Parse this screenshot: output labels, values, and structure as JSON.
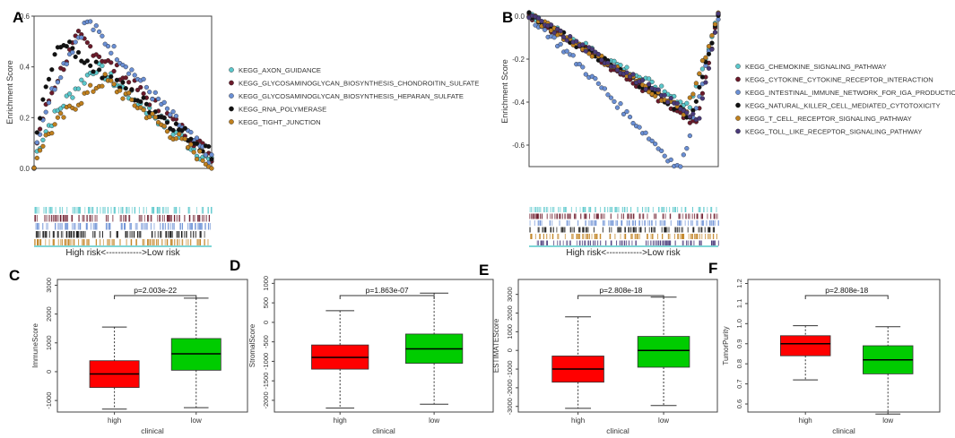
{
  "chart_data": [
    {
      "type": "scatter",
      "panel": "A",
      "ylabel": "Enrichment Score",
      "ylim": [
        0,
        0.6
      ],
      "yticks": [
        "0.0",
        "0.2",
        "0.4",
        "0.6"
      ],
      "series": [
        {
          "name": "KEGG_AXON_GUIDANCE",
          "color": "#5bc8cc",
          "peak": 0.4,
          "peak_pos": 0.35,
          "end": 0.02
        },
        {
          "name": "KEGG_GLYCOSAMINOGLYCAN_BIOSYNTHESIS_CHONDROITIN_SULFATE",
          "color": "#6b1a2a",
          "peak": 0.52,
          "peak_pos": 0.25,
          "end": 0.05
        },
        {
          "name": "KEGG_GLYCOSAMINOGLYCAN_BIOSYNTHESIS_HEPARAN_SULFATE",
          "color": "#6a8fd4",
          "peak": 0.58,
          "peak_pos": 0.3,
          "end": 0.03
        },
        {
          "name": "KEGG_RNA_POLYMERASE",
          "color": "#111111",
          "peak": 0.5,
          "peak_pos": 0.15,
          "end": 0.06
        },
        {
          "name": "KEGG_TIGHT_JUNCTION",
          "color": "#c0801e",
          "peak": 0.35,
          "peak_pos": 0.4,
          "end": 0.01
        }
      ],
      "rank_caption": "High risk<------------>Low risk"
    },
    {
      "type": "scatter",
      "panel": "B",
      "ylabel": "Enrichment Score",
      "ylim": [
        -0.7,
        0.0
      ],
      "yticks": [
        "0.0",
        "-0.2",
        "-0.4",
        "-0.6"
      ],
      "series": [
        {
          "name": "KEGG_CHEMOKINE_SIGNALING_PATHWAY",
          "color": "#5bc8cc",
          "trough": -0.42,
          "trough_pos": 0.85
        },
        {
          "name": "KEGG_CYTOKINE_CYTOKINE_RECEPTOR_INTERACTION",
          "color": "#6b1a2a",
          "trough": -0.5,
          "trough_pos": 0.88
        },
        {
          "name": "KEGG_INTESTINAL_IMMUNE_NETWORK_FOR_IGA_PRODUCTION",
          "color": "#6a8fd4",
          "trough": -0.72,
          "trough_pos": 0.8
        },
        {
          "name": "KEGG_NATURAL_KILLER_CELL_MEDIATED_CYTOTOXICITY",
          "color": "#111111",
          "trough": -0.47,
          "trough_pos": 0.86
        },
        {
          "name": "KEGG_T_CELL_RECEPTOR_SIGNALING_PATHWAY",
          "color": "#c0801e",
          "trough": -0.45,
          "trough_pos": 0.83
        },
        {
          "name": "KEGG_TOLL_LIKE_RECEPTOR_SIGNALING_PATHWAY",
          "color": "#4a3a7a",
          "trough": -0.48,
          "trough_pos": 0.9
        }
      ],
      "rank_caption": "High risk<------------>Low risk"
    },
    {
      "type": "boxplot",
      "panel": "C",
      "ylabel": "ImmuneScore",
      "xlabel": "clinical",
      "ylim": [
        -1400,
        3200
      ],
      "yticks": [
        -1000,
        0,
        1000,
        2000,
        3000
      ],
      "categories": [
        "high",
        "low"
      ],
      "colors": [
        "#ff0000",
        "#00cc00"
      ],
      "boxes": [
        {
          "min": -1300,
          "q1": -550,
          "median": -80,
          "q3": 380,
          "max": 1550
        },
        {
          "min": -1250,
          "q1": 50,
          "median": 620,
          "q3": 1150,
          "max": 2550
        }
      ],
      "pvalue": "p=2.003e-22"
    },
    {
      "type": "boxplot",
      "panel": "D",
      "ylabel": "StromalScore",
      "xlabel": "clinical",
      "ylim": [
        -2300,
        1100
      ],
      "yticks": [
        -2000,
        -1500,
        -1000,
        -500,
        0,
        500,
        1000
      ],
      "categories": [
        "high",
        "low"
      ],
      "colors": [
        "#ff0000",
        "#00cc00"
      ],
      "boxes": [
        {
          "min": -2200,
          "q1": -1200,
          "median": -900,
          "q3": -580,
          "max": 300
        },
        {
          "min": -2100,
          "q1": -1050,
          "median": -680,
          "q3": -300,
          "max": 750
        }
      ],
      "pvalue": "p=1.863e-07"
    },
    {
      "type": "boxplot",
      "panel": "E",
      "ylabel": "ESTIMATEScore",
      "xlabel": "clinical",
      "ylim": [
        -3300,
        3800
      ],
      "yticks": [
        -3000,
        -2000,
        -1000,
        0,
        1000,
        2000,
        3000
      ],
      "categories": [
        "high",
        "low"
      ],
      "colors": [
        "#ff0000",
        "#00cc00"
      ],
      "boxes": [
        {
          "min": -3100,
          "q1": -1700,
          "median": -1000,
          "q3": -300,
          "max": 1800
        },
        {
          "min": -2950,
          "q1": -900,
          "median": 0,
          "q3": 750,
          "max": 2850
        }
      ],
      "pvalue": "p=2.808e-18"
    },
    {
      "type": "boxplot",
      "panel": "F",
      "ylabel": "TumorPurity",
      "xlabel": "clinical",
      "ylim": [
        0.56,
        1.22
      ],
      "yticks": [
        "0.6",
        "0.7",
        "0.8",
        "0.9",
        "1.0",
        "1.1",
        "1.2"
      ],
      "categories": [
        "high",
        "low"
      ],
      "colors": [
        "#ff0000",
        "#00cc00"
      ],
      "boxes": [
        {
          "min": 0.72,
          "q1": 0.84,
          "median": 0.9,
          "q3": 0.94,
          "max": 0.99
        },
        {
          "min": 0.55,
          "q1": 0.75,
          "median": 0.82,
          "q3": 0.89,
          "max": 0.985
        }
      ],
      "pvalue": "p=2.808e-18"
    }
  ]
}
